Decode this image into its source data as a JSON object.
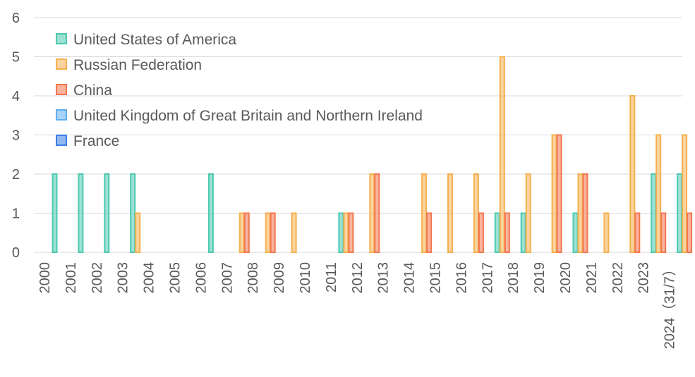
{
  "chart_data": {
    "type": "bar",
    "title": "",
    "xlabel": "",
    "ylabel": "",
    "ylim": [
      0,
      6
    ],
    "yticks": [
      0,
      1,
      2,
      3,
      4,
      5,
      6
    ],
    "grid": true,
    "legend_position": "top-left",
    "categories": [
      "2000",
      "2001",
      "2002",
      "2003",
      "2004",
      "2005",
      "2006",
      "2007",
      "2008",
      "2009",
      "2010",
      "2011",
      "2012",
      "2013",
      "2014",
      "2015",
      "2016",
      "2017",
      "2018",
      "2019",
      "2020",
      "2021",
      "2022",
      "2023",
      "2024（31/7）"
    ],
    "series": [
      {
        "name": "United States of America",
        "color": "#4dc9b0",
        "values": [
          2,
          2,
          2,
          2,
          0,
          0,
          2,
          0,
          0,
          0,
          0,
          1,
          0,
          0,
          0,
          0,
          0,
          1,
          1,
          0,
          1,
          0,
          0,
          2,
          2
        ]
      },
      {
        "name": "Russian Federation",
        "color": "#f6b04f",
        "values": [
          0,
          0,
          0,
          1,
          0,
          0,
          0,
          1,
          1,
          1,
          0,
          1,
          2,
          0,
          2,
          2,
          2,
          5,
          2,
          3,
          2,
          1,
          4,
          3,
          3
        ]
      },
      {
        "name": "China",
        "color": "#f4764f",
        "values": [
          0,
          0,
          0,
          0,
          0,
          0,
          0,
          1,
          1,
          0,
          0,
          1,
          2,
          0,
          1,
          0,
          1,
          1,
          0,
          3,
          2,
          0,
          1,
          1,
          1
        ]
      },
      {
        "name": "United Kingdom of Great Britain and Northern Ireland",
        "color": "#5eaef0",
        "values": [
          0,
          0,
          0,
          0,
          0,
          0,
          0,
          0,
          0,
          0,
          0,
          0,
          0,
          0,
          0,
          0,
          0,
          0,
          0,
          0,
          0,
          0,
          0,
          0,
          0
        ]
      },
      {
        "name": "France",
        "color": "#3b7ee6",
        "values": [
          0,
          0,
          0,
          0,
          0,
          0,
          0,
          0,
          0,
          0,
          0,
          0,
          0,
          0,
          0,
          0,
          0,
          0,
          0,
          0,
          0,
          0,
          0,
          0,
          0
        ]
      }
    ]
  }
}
